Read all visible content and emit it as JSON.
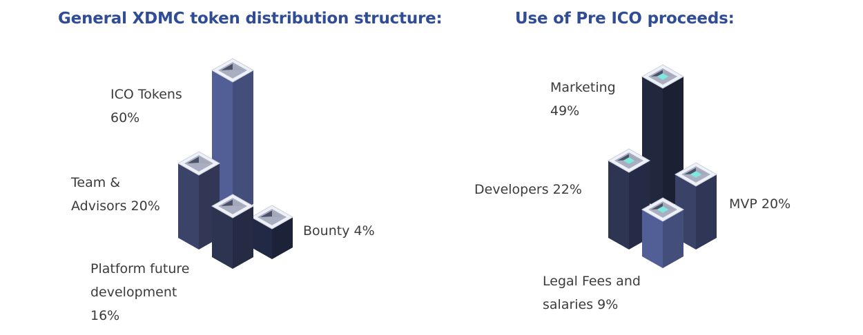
{
  "titles": {
    "left": "General XDMC token distribution structure:",
    "right": "Use of Pre ICO proceeds:"
  },
  "colors": {
    "title": "#2f4c94",
    "label_text": "#3b3b3b",
    "cap_outer": "#eef1f7",
    "cap_rim": "#a9aec1",
    "cap_inner_dark": "#4a5166",
    "cap_inner_light": "#a2a8ba",
    "accent_teal": "#7fe7dd"
  },
  "chart_data": [
    {
      "type": "bar",
      "style": "isometric-3d-columns",
      "title": "General XDMC token distribution structure:",
      "categories": [
        "ICO Tokens",
        "Team & Advisors",
        "Platform future development",
        "Bounty"
      ],
      "values": [
        60,
        20,
        16,
        4
      ],
      "unit": "%",
      "labels": {
        "ico": [
          "ICO Tokens",
          "60%"
        ],
        "team": [
          "Team &",
          "Advisors 20%"
        ],
        "platform": [
          "Platform future",
          "development",
          "16%"
        ],
        "bounty": [
          "Bounty 4%"
        ]
      },
      "bar_colors": {
        "ico": "#525f96",
        "team": "#3c4368",
        "platform": "#2c3452",
        "bounty": "#222944"
      }
    },
    {
      "type": "bar",
      "style": "isometric-3d-columns",
      "title": "Use of Pre ICO proceeds:",
      "categories": [
        "Marketing",
        "Developers",
        "MVP",
        "Legal Fees and salaries"
      ],
      "values": [
        49,
        22,
        20,
        9
      ],
      "unit": "%",
      "labels": {
        "marketing": [
          "Marketing",
          "49%"
        ],
        "developers": [
          "Developers 22%"
        ],
        "mvp": [
          "MVP 20%"
        ],
        "legal": [
          "Legal Fees and",
          "salaries 9%"
        ]
      },
      "bar_colors": {
        "marketing": "#21283e",
        "developers": "#2d3553",
        "mvp": "#3a4268",
        "legal": "#525f96"
      }
    }
  ]
}
